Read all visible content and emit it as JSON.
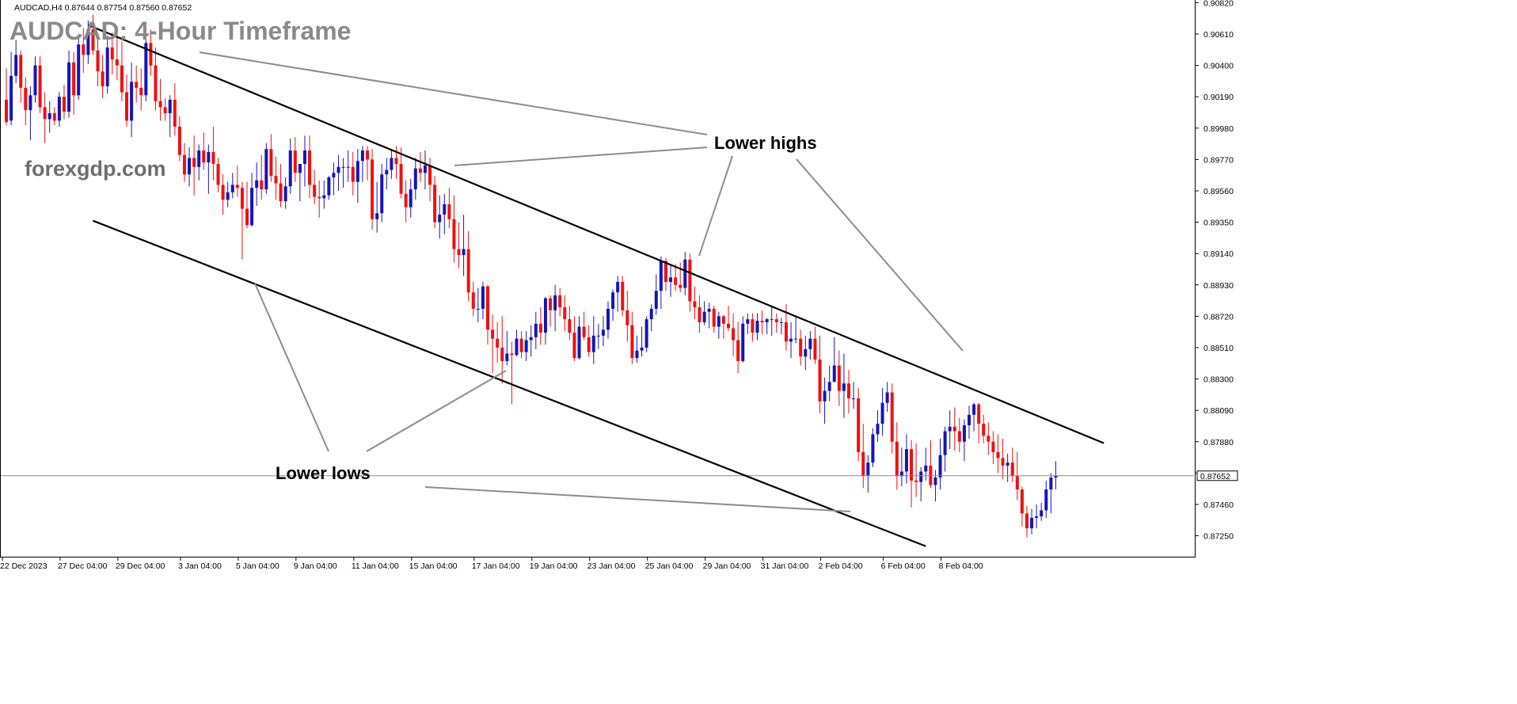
{
  "colors": {
    "bull": "#1515b8",
    "bear": "#ef1010",
    "channel": "#000000",
    "pointer": "#8c8c8c",
    "title": "#8a8a8a",
    "watermark": "#6e6e6e"
  },
  "chart_data": {
    "type": "candlestick",
    "header": "AUDCAD,H4  0.87644 0.87754 0.87560 0.87652",
    "title": "AUDCAD: 4-Hour Timeframe",
    "watermark": "forexgdp.com",
    "symbol": "AUDCAD",
    "timeframe": "H4",
    "ohlc_last": {
      "open": 0.87644,
      "high": 0.87754,
      "low": 0.8756,
      "close": 0.87652
    },
    "current_price_label": "0.87652",
    "ylim": [
      0.87184,
      0.90822
    ],
    "y_ticks": [
      "0.90820",
      "0.90610",
      "0.90400",
      "0.90190",
      "0.89980",
      "0.89770",
      "0.89560",
      "0.89350",
      "0.89140",
      "0.88930",
      "0.88720",
      "0.88510",
      "0.88300",
      "0.88090",
      "0.87880",
      "0.87670",
      "0.87460",
      "0.87250"
    ],
    "x_ticks": [
      "22 Dec 2023",
      "27 Dec 04:00",
      "29 Dec 04:00",
      "3 Jan 04:00",
      "5 Jan 04:00",
      "9 Jan 04:00",
      "11 Jan 04:00",
      "15 Jan 04:00",
      "17 Jan 04:00",
      "19 Jan 04:00",
      "23 Jan 04:00",
      "25 Jan 04:00",
      "29 Jan 04:00",
      "31 Jan 04:00",
      "2 Feb 04:00",
      "6 Feb 04:00",
      "8 Feb 04:00"
    ],
    "x_tick_bar_index": [
      0,
      12,
      24,
      37,
      49,
      61,
      73,
      85,
      98,
      110,
      122,
      134,
      146,
      158,
      170,
      183,
      195
    ],
    "annotations": [
      "Lower highs",
      "Lower lows"
    ],
    "channel": {
      "upper": [
        {
          "bar": 17,
          "price": 0.9067
        },
        {
          "bar": 228,
          "price": 0.8787
        }
      ],
      "lower": [
        {
          "bar": 18,
          "price": 0.8936
        },
        {
          "bar": 191,
          "price": 0.8718
        }
      ]
    },
    "candles": [
      [
        0.9017,
        0.9038,
        0.9,
        0.9002
      ],
      [
        0.9003,
        0.9049,
        0.9,
        0.9033
      ],
      [
        0.9033,
        0.9057,
        0.9028,
        0.9047
      ],
      [
        0.9047,
        0.905,
        0.9015,
        0.9025
      ],
      [
        0.9025,
        0.9032,
        0.9,
        0.901
      ],
      [
        0.901,
        0.9026,
        0.899,
        0.902
      ],
      [
        0.902,
        0.9046,
        0.9015,
        0.904
      ],
      [
        0.904,
        0.9046,
        0.9008,
        0.9012
      ],
      [
        0.9012,
        0.9022,
        0.8988,
        0.9004
      ],
      [
        0.9004,
        0.9016,
        0.8995,
        0.9008
      ],
      [
        0.9008,
        0.9012,
        0.9,
        0.9003
      ],
      [
        0.9003,
        0.9022,
        0.8999,
        0.9019
      ],
      [
        0.9019,
        0.9027,
        0.9004,
        0.9009
      ],
      [
        0.9009,
        0.905,
        0.9005,
        0.9042
      ],
      [
        0.9042,
        0.9049,
        0.9007,
        0.902
      ],
      [
        0.902,
        0.906,
        0.9017,
        0.9054
      ],
      [
        0.9054,
        0.9065,
        0.9035,
        0.9047
      ],
      [
        0.9047,
        0.907,
        0.9041,
        0.9064
      ],
      [
        0.9064,
        0.9074,
        0.9047,
        0.905
      ],
      [
        0.905,
        0.906,
        0.9026,
        0.9036
      ],
      [
        0.9036,
        0.9047,
        0.9018,
        0.9026
      ],
      [
        0.9026,
        0.906,
        0.9021,
        0.9052
      ],
      [
        0.9052,
        0.9062,
        0.9034,
        0.9044
      ],
      [
        0.9044,
        0.9066,
        0.903,
        0.904
      ],
      [
        0.904,
        0.9056,
        0.9016,
        0.9022
      ],
      [
        0.9022,
        0.9034,
        0.8999,
        0.9003
      ],
      [
        0.9003,
        0.9042,
        0.8992,
        0.9029
      ],
      [
        0.9029,
        0.904,
        0.9015,
        0.9025
      ],
      [
        0.9025,
        0.9038,
        0.901,
        0.902
      ],
      [
        0.902,
        0.9061,
        0.9016,
        0.9055
      ],
      [
        0.9055,
        0.9064,
        0.9033,
        0.904
      ],
      [
        0.904,
        0.9052,
        0.901,
        0.9016
      ],
      [
        0.9016,
        0.9031,
        0.9003,
        0.9012
      ],
      [
        0.9012,
        0.9018,
        0.9003,
        0.9008
      ],
      [
        0.9008,
        0.902,
        0.8992,
        0.9017
      ],
      [
        0.9017,
        0.9028,
        0.8993,
        0.8999
      ],
      [
        0.8999,
        0.9006,
        0.8976,
        0.898
      ],
      [
        0.898,
        0.8988,
        0.8962,
        0.8967
      ],
      [
        0.8967,
        0.8985,
        0.8959,
        0.8978
      ],
      [
        0.8978,
        0.8993,
        0.8953,
        0.8972
      ],
      [
        0.8972,
        0.8987,
        0.8963,
        0.8983
      ],
      [
        0.8983,
        0.8995,
        0.897,
        0.8975
      ],
      [
        0.8975,
        0.8987,
        0.8954,
        0.8982
      ],
      [
        0.8982,
        0.8999,
        0.8963,
        0.8974
      ],
      [
        0.8974,
        0.8978,
        0.8955,
        0.896
      ],
      [
        0.896,
        0.8967,
        0.894,
        0.895
      ],
      [
        0.895,
        0.8962,
        0.8945,
        0.8955
      ],
      [
        0.8955,
        0.8968,
        0.8951,
        0.896
      ],
      [
        0.896,
        0.8973,
        0.8952,
        0.8958
      ],
      [
        0.8958,
        0.8962,
        0.891,
        0.8944
      ],
      [
        0.8944,
        0.8962,
        0.8931,
        0.8933
      ],
      [
        0.8933,
        0.8968,
        0.8932,
        0.8958
      ],
      [
        0.8958,
        0.8975,
        0.8946,
        0.8963
      ],
      [
        0.8963,
        0.898,
        0.895,
        0.8957
      ],
      [
        0.8957,
        0.8988,
        0.8954,
        0.8984
      ],
      [
        0.8984,
        0.8994,
        0.8962,
        0.8966
      ],
      [
        0.8966,
        0.8979,
        0.895,
        0.8961
      ],
      [
        0.8961,
        0.8974,
        0.8945,
        0.8949
      ],
      [
        0.8949,
        0.8965,
        0.8944,
        0.8959
      ],
      [
        0.8959,
        0.8991,
        0.8954,
        0.8983
      ],
      [
        0.8983,
        0.8992,
        0.8962,
        0.8968
      ],
      [
        0.8968,
        0.8974,
        0.8949,
        0.8974
      ],
      [
        0.8974,
        0.8993,
        0.8959,
        0.8983
      ],
      [
        0.8983,
        0.8993,
        0.8951,
        0.896
      ],
      [
        0.896,
        0.897,
        0.8947,
        0.8952
      ],
      [
        0.8952,
        0.8963,
        0.8938,
        0.8951
      ],
      [
        0.8951,
        0.8963,
        0.8944,
        0.8953
      ],
      [
        0.8953,
        0.8966,
        0.895,
        0.8965
      ],
      [
        0.8965,
        0.8975,
        0.8953,
        0.8968
      ],
      [
        0.8968,
        0.898,
        0.8956,
        0.8972
      ],
      [
        0.8972,
        0.8978,
        0.8958,
        0.8972
      ],
      [
        0.8972,
        0.8983,
        0.8962,
        0.8972
      ],
      [
        0.8972,
        0.8982,
        0.8953,
        0.8962
      ],
      [
        0.8962,
        0.8984,
        0.8948,
        0.8976
      ],
      [
        0.8976,
        0.8986,
        0.8962,
        0.8983
      ],
      [
        0.8983,
        0.8986,
        0.8963,
        0.8977
      ],
      [
        0.8977,
        0.8984,
        0.893,
        0.8937
      ],
      [
        0.8937,
        0.8962,
        0.8928,
        0.8941
      ],
      [
        0.8941,
        0.8974,
        0.8935,
        0.8967
      ],
      [
        0.8967,
        0.8978,
        0.8957,
        0.897
      ],
      [
        0.897,
        0.8983,
        0.8964,
        0.8978
      ],
      [
        0.8978,
        0.8986,
        0.8964,
        0.8974
      ],
      [
        0.8974,
        0.8985,
        0.8951,
        0.8954
      ],
      [
        0.8954,
        0.8963,
        0.8935,
        0.8945
      ],
      [
        0.8945,
        0.8964,
        0.8938,
        0.8957
      ],
      [
        0.8957,
        0.8978,
        0.895,
        0.8971
      ],
      [
        0.8971,
        0.8982,
        0.8962,
        0.8968
      ],
      [
        0.8968,
        0.8983,
        0.8957,
        0.8973
      ],
      [
        0.8973,
        0.8978,
        0.8949,
        0.896
      ],
      [
        0.896,
        0.8966,
        0.8931,
        0.8935
      ],
      [
        0.8935,
        0.8953,
        0.8924,
        0.894
      ],
      [
        0.894,
        0.8954,
        0.8927,
        0.8947
      ],
      [
        0.8947,
        0.8958,
        0.8931,
        0.8937
      ],
      [
        0.8937,
        0.8953,
        0.8908,
        0.8917
      ],
      [
        0.8917,
        0.8935,
        0.8904,
        0.8913
      ],
      [
        0.8913,
        0.894,
        0.8899,
        0.8917
      ],
      [
        0.8917,
        0.8929,
        0.8882,
        0.8888
      ],
      [
        0.8888,
        0.8895,
        0.8872,
        0.8877
      ],
      [
        0.8877,
        0.8891,
        0.8868,
        0.8877
      ],
      [
        0.8877,
        0.8895,
        0.887,
        0.8892
      ],
      [
        0.8892,
        0.8893,
        0.8853,
        0.8863
      ],
      [
        0.8863,
        0.8873,
        0.8834,
        0.8857
      ],
      [
        0.8857,
        0.8868,
        0.8841,
        0.8851
      ],
      [
        0.8851,
        0.8872,
        0.8827,
        0.8842
      ],
      [
        0.8842,
        0.8862,
        0.8839,
        0.8847
      ],
      [
        0.8847,
        0.8855,
        0.8813,
        0.8846
      ],
      [
        0.8846,
        0.8863,
        0.8845,
        0.8857
      ],
      [
        0.8857,
        0.8862,
        0.8844,
        0.8848
      ],
      [
        0.8848,
        0.8862,
        0.8842,
        0.8856
      ],
      [
        0.8856,
        0.8866,
        0.8845,
        0.8858
      ],
      [
        0.8858,
        0.8875,
        0.885,
        0.8867
      ],
      [
        0.8867,
        0.8878,
        0.8853,
        0.8861
      ],
      [
        0.8861,
        0.8885,
        0.8853,
        0.8884
      ],
      [
        0.8884,
        0.8886,
        0.8865,
        0.8876
      ],
      [
        0.8876,
        0.8893,
        0.8862,
        0.8886
      ],
      [
        0.8886,
        0.8891,
        0.8872,
        0.8878
      ],
      [
        0.8878,
        0.8886,
        0.8862,
        0.887
      ],
      [
        0.887,
        0.8879,
        0.8856,
        0.8861
      ],
      [
        0.8861,
        0.8872,
        0.8842,
        0.8844
      ],
      [
        0.8844,
        0.8872,
        0.8843,
        0.8865
      ],
      [
        0.8865,
        0.8875,
        0.8856,
        0.8858
      ],
      [
        0.8858,
        0.8866,
        0.8845,
        0.8848
      ],
      [
        0.8848,
        0.8872,
        0.884,
        0.8859
      ],
      [
        0.8859,
        0.8867,
        0.885,
        0.8859
      ],
      [
        0.8859,
        0.8872,
        0.8852,
        0.8863
      ],
      [
        0.8863,
        0.8882,
        0.8857,
        0.8877
      ],
      [
        0.8877,
        0.889,
        0.8869,
        0.8888
      ],
      [
        0.8888,
        0.8899,
        0.8875,
        0.8895
      ],
      [
        0.8895,
        0.8899,
        0.8872,
        0.8876
      ],
      [
        0.8876,
        0.8889,
        0.8855,
        0.8866
      ],
      [
        0.8866,
        0.8875,
        0.884,
        0.8844
      ],
      [
        0.8844,
        0.8859,
        0.8841,
        0.8849
      ],
      [
        0.8849,
        0.8865,
        0.8845,
        0.8851
      ],
      [
        0.8851,
        0.8872,
        0.8848,
        0.887
      ],
      [
        0.887,
        0.888,
        0.8862,
        0.8877
      ],
      [
        0.8877,
        0.89,
        0.8873,
        0.8889
      ],
      [
        0.8889,
        0.8912,
        0.8877,
        0.8909
      ],
      [
        0.8909,
        0.8911,
        0.8889,
        0.8895
      ],
      [
        0.8895,
        0.8907,
        0.8885,
        0.8898
      ],
      [
        0.8898,
        0.8907,
        0.8889,
        0.8893
      ],
      [
        0.8893,
        0.8908,
        0.8888,
        0.8891
      ],
      [
        0.8891,
        0.8915,
        0.8886,
        0.891
      ],
      [
        0.891,
        0.8914,
        0.8875,
        0.8882
      ],
      [
        0.8882,
        0.8892,
        0.887,
        0.8878
      ],
      [
        0.8878,
        0.8886,
        0.8861,
        0.8868
      ],
      [
        0.8868,
        0.8882,
        0.8866,
        0.8875
      ],
      [
        0.8875,
        0.8881,
        0.8864,
        0.8877
      ],
      [
        0.8877,
        0.8879,
        0.8861,
        0.8865
      ],
      [
        0.8865,
        0.8875,
        0.8857,
        0.8872
      ],
      [
        0.8872,
        0.8873,
        0.8857,
        0.8867
      ],
      [
        0.8867,
        0.8879,
        0.8862,
        0.8864
      ],
      [
        0.8864,
        0.8874,
        0.8845,
        0.8856
      ],
      [
        0.8856,
        0.8868,
        0.8834,
        0.8842
      ],
      [
        0.8842,
        0.8872,
        0.8841,
        0.8867
      ],
      [
        0.8867,
        0.8874,
        0.886,
        0.887
      ],
      [
        0.887,
        0.8874,
        0.8855,
        0.8861
      ],
      [
        0.8861,
        0.8874,
        0.8856,
        0.8869
      ],
      [
        0.8869,
        0.8876,
        0.886,
        0.8868
      ],
      [
        0.8868,
        0.8871,
        0.886,
        0.887
      ],
      [
        0.887,
        0.8878,
        0.8859,
        0.887
      ],
      [
        0.887,
        0.8874,
        0.8861,
        0.8868
      ],
      [
        0.8868,
        0.8871,
        0.886,
        0.8868
      ],
      [
        0.8868,
        0.888,
        0.8849,
        0.8855
      ],
      [
        0.8855,
        0.8868,
        0.8844,
        0.8857
      ],
      [
        0.8857,
        0.8872,
        0.8854,
        0.8857
      ],
      [
        0.8857,
        0.8863,
        0.8839,
        0.8845
      ],
      [
        0.8845,
        0.8859,
        0.8836,
        0.885
      ],
      [
        0.885,
        0.8862,
        0.8843,
        0.8857
      ],
      [
        0.8857,
        0.8865,
        0.884,
        0.8843
      ],
      [
        0.8843,
        0.8859,
        0.8807,
        0.8815
      ],
      [
        0.8815,
        0.8831,
        0.88,
        0.8822
      ],
      [
        0.8822,
        0.8839,
        0.8815,
        0.8828
      ],
      [
        0.8828,
        0.8858,
        0.8828,
        0.8839
      ],
      [
        0.8839,
        0.8849,
        0.8812,
        0.8822
      ],
      [
        0.8822,
        0.8847,
        0.8804,
        0.8827
      ],
      [
        0.8827,
        0.8836,
        0.8807,
        0.8817
      ],
      [
        0.8817,
        0.8828,
        0.881,
        0.8817
      ],
      [
        0.8817,
        0.8824,
        0.8775,
        0.8781
      ],
      [
        0.8781,
        0.88,
        0.8757,
        0.8765
      ],
      [
        0.8765,
        0.8779,
        0.8754,
        0.8774
      ],
      [
        0.8774,
        0.8797,
        0.8771,
        0.8793
      ],
      [
        0.8793,
        0.8809,
        0.8788,
        0.88
      ],
      [
        0.88,
        0.8824,
        0.8792,
        0.8814
      ],
      [
        0.8814,
        0.8828,
        0.8808,
        0.8821
      ],
      [
        0.8821,
        0.8827,
        0.878,
        0.8788
      ],
      [
        0.8788,
        0.8801,
        0.8756,
        0.8765
      ],
      [
        0.8765,
        0.8784,
        0.8758,
        0.8768
      ],
      [
        0.8768,
        0.8793,
        0.876,
        0.8783
      ],
      [
        0.8783,
        0.8789,
        0.8744,
        0.8762
      ],
      [
        0.8762,
        0.8787,
        0.8751,
        0.8761
      ],
      [
        0.8761,
        0.8771,
        0.8748,
        0.8768
      ],
      [
        0.8768,
        0.8784,
        0.8762,
        0.8772
      ],
      [
        0.8772,
        0.8789,
        0.8757,
        0.8759
      ],
      [
        0.8759,
        0.8769,
        0.8748,
        0.8764
      ],
      [
        0.8764,
        0.879,
        0.8756,
        0.8779
      ],
      [
        0.8779,
        0.8798,
        0.8768,
        0.8795
      ],
      [
        0.8795,
        0.8809,
        0.8783,
        0.8798
      ],
      [
        0.8798,
        0.8811,
        0.8782,
        0.8795
      ],
      [
        0.8795,
        0.8804,
        0.8781,
        0.8788
      ],
      [
        0.8788,
        0.8803,
        0.8775,
        0.8799
      ],
      [
        0.8799,
        0.8812,
        0.879,
        0.8806
      ],
      [
        0.8806,
        0.8814,
        0.8795,
        0.8813
      ],
      [
        0.8813,
        0.8814,
        0.8787,
        0.88
      ],
      [
        0.88,
        0.8806,
        0.8787,
        0.8792
      ],
      [
        0.8792,
        0.8801,
        0.8779,
        0.8788
      ],
      [
        0.8788,
        0.8795,
        0.8773,
        0.8781
      ],
      [
        0.8781,
        0.8793,
        0.8767,
        0.8777
      ],
      [
        0.8777,
        0.879,
        0.8763,
        0.8772
      ],
      [
        0.8772,
        0.878,
        0.8761,
        0.8774
      ],
      [
        0.8774,
        0.8784,
        0.8761,
        0.8765
      ],
      [
        0.8765,
        0.8781,
        0.8749,
        0.8756
      ],
      [
        0.8756,
        0.8758,
        0.8731,
        0.874
      ],
      [
        0.874,
        0.8745,
        0.8724,
        0.873
      ],
      [
        0.873,
        0.8743,
        0.8726,
        0.8737
      ],
      [
        0.8737,
        0.8746,
        0.873,
        0.8738
      ],
      [
        0.8738,
        0.8747,
        0.8735,
        0.8742
      ],
      [
        0.8742,
        0.8762,
        0.8737,
        0.8756
      ],
      [
        0.8756,
        0.8767,
        0.874,
        0.8764
      ],
      [
        0.8764,
        0.8775,
        0.8756,
        0.8765
      ]
    ]
  }
}
